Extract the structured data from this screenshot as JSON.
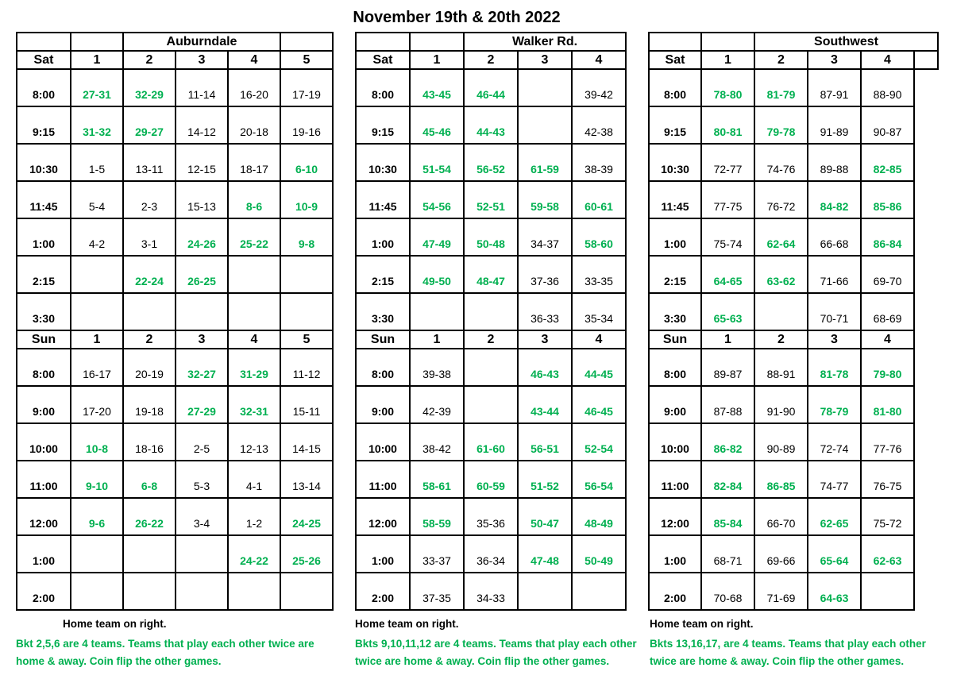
{
  "title": "November 19th & 20th 2022",
  "colors": {
    "green": "#00b050",
    "text": "#000000",
    "background": "#ffffff"
  },
  "tables": [
    {
      "name": "Auburndale",
      "day1": "Sat",
      "day2": "Sun",
      "columns": [
        "1",
        "2",
        "3",
        "4",
        "5"
      ],
      "venue_span": 3,
      "trailing_blank_cells": 1,
      "header_stub": false,
      "sat_rows": [
        {
          "time": "8:00",
          "cells": [
            {
              "v": "27-31",
              "green": true
            },
            {
              "v": "32-29",
              "green": true
            },
            {
              "v": "11-14"
            },
            {
              "v": "16-20"
            },
            {
              "v": "17-19"
            }
          ]
        },
        {
          "time": "9:15",
          "cells": [
            {
              "v": "31-32",
              "green": true
            },
            {
              "v": "29-27",
              "green": true
            },
            {
              "v": "14-12"
            },
            {
              "v": "20-18"
            },
            {
              "v": "19-16"
            }
          ]
        },
        {
          "time": "10:30",
          "cells": [
            {
              "v": "1-5"
            },
            {
              "v": "13-11"
            },
            {
              "v": "12-15"
            },
            {
              "v": "18-17"
            },
            {
              "v": "6-10",
              "green": true
            }
          ]
        },
        {
          "time": "11:45",
          "cells": [
            {
              "v": "5-4"
            },
            {
              "v": "2-3"
            },
            {
              "v": "15-13"
            },
            {
              "v": "8-6",
              "green": true
            },
            {
              "v": "10-9",
              "green": true
            }
          ]
        },
        {
          "time": "1:00",
          "cells": [
            {
              "v": "4-2"
            },
            {
              "v": "3-1"
            },
            {
              "v": "24-26",
              "green": true
            },
            {
              "v": "25-22",
              "green": true
            },
            {
              "v": "9-8",
              "green": true
            }
          ]
        },
        {
          "time": "2:15",
          "cells": [
            {
              "v": ""
            },
            {
              "v": "22-24",
              "green": true
            },
            {
              "v": "26-25",
              "green": true
            },
            {
              "v": ""
            },
            {
              "v": ""
            }
          ]
        },
        {
          "time": "3:30",
          "cells": [
            {
              "v": ""
            },
            {
              "v": ""
            },
            {
              "v": ""
            },
            {
              "v": ""
            },
            {
              "v": ""
            }
          ]
        }
      ],
      "sun_rows": [
        {
          "time": "8:00",
          "cells": [
            {
              "v": "16-17"
            },
            {
              "v": "20-19"
            },
            {
              "v": "32-27",
              "green": true
            },
            {
              "v": "31-29",
              "green": true
            },
            {
              "v": "11-12"
            }
          ]
        },
        {
          "time": "9:00",
          "cells": [
            {
              "v": "17-20"
            },
            {
              "v": "19-18"
            },
            {
              "v": "27-29",
              "green": true
            },
            {
              "v": "32-31",
              "green": true
            },
            {
              "v": "15-11"
            }
          ]
        },
        {
          "time": "10:00",
          "cells": [
            {
              "v": "10-8",
              "green": true
            },
            {
              "v": "18-16"
            },
            {
              "v": "2-5"
            },
            {
              "v": "12-13"
            },
            {
              "v": "14-15"
            }
          ]
        },
        {
          "time": "11:00",
          "cells": [
            {
              "v": "9-10",
              "green": true
            },
            {
              "v": "6-8",
              "green": true
            },
            {
              "v": "5-3"
            },
            {
              "v": "4-1"
            },
            {
              "v": "13-14"
            }
          ]
        },
        {
          "time": "12:00",
          "cells": [
            {
              "v": "9-6",
              "green": true
            },
            {
              "v": "26-22",
              "green": true
            },
            {
              "v": "3-4"
            },
            {
              "v": "1-2"
            },
            {
              "v": "24-25",
              "green": true
            }
          ]
        },
        {
          "time": "1:00",
          "cells": [
            {
              "v": ""
            },
            {
              "v": ""
            },
            {
              "v": ""
            },
            {
              "v": "24-22",
              "green": true
            },
            {
              "v": "25-26",
              "green": true
            }
          ]
        },
        {
          "time": "2:00",
          "cells": [
            {
              "v": ""
            },
            {
              "v": ""
            },
            {
              "v": ""
            },
            {
              "v": ""
            },
            {
              "v": ""
            }
          ]
        }
      ],
      "footer_black": "Home team on right.",
      "footer_green_line1": "Bkt 2,5,6 are 4 teams. Teams that play each other twice are",
      "footer_green_line2": "home & away. Coin flip the other games."
    },
    {
      "name": "Walker Rd.",
      "day1": "Sat",
      "day2": "Sun",
      "columns": [
        "1",
        "2",
        "3",
        "4"
      ],
      "venue_span": 3,
      "trailing_blank_cells": 0,
      "header_stub": false,
      "sat_rows": [
        {
          "time": "8:00",
          "cells": [
            {
              "v": "43-45",
              "green": true
            },
            {
              "v": "46-44",
              "green": true
            },
            {
              "v": ""
            },
            {
              "v": "39-42"
            }
          ]
        },
        {
          "time": "9:15",
          "cells": [
            {
              "v": "45-46",
              "green": true
            },
            {
              "v": "44-43",
              "green": true
            },
            {
              "v": ""
            },
            {
              "v": "42-38"
            }
          ]
        },
        {
          "time": "10:30",
          "cells": [
            {
              "v": "51-54",
              "green": true
            },
            {
              "v": "56-52",
              "green": true
            },
            {
              "v": "61-59",
              "green": true
            },
            {
              "v": "38-39"
            }
          ]
        },
        {
          "time": "11:45",
          "cells": [
            {
              "v": "54-56",
              "green": true
            },
            {
              "v": "52-51",
              "green": true
            },
            {
              "v": "59-58",
              "green": true
            },
            {
              "v": "60-61",
              "green": true
            }
          ]
        },
        {
          "time": "1:00",
          "cells": [
            {
              "v": "47-49",
              "green": true
            },
            {
              "v": "50-48",
              "green": true
            },
            {
              "v": "34-37"
            },
            {
              "v": "58-60",
              "green": true
            }
          ]
        },
        {
          "time": "2:15",
          "cells": [
            {
              "v": "49-50",
              "green": true
            },
            {
              "v": "48-47",
              "green": true
            },
            {
              "v": "37-36"
            },
            {
              "v": "33-35"
            }
          ]
        },
        {
          "time": "3:30",
          "cells": [
            {
              "v": ""
            },
            {
              "v": ""
            },
            {
              "v": "36-33"
            },
            {
              "v": "35-34"
            }
          ]
        }
      ],
      "sun_rows": [
        {
          "time": "8:00",
          "cells": [
            {
              "v": "39-38"
            },
            {
              "v": ""
            },
            {
              "v": "46-43",
              "green": true
            },
            {
              "v": "44-45",
              "green": true
            }
          ]
        },
        {
          "time": "9:00",
          "cells": [
            {
              "v": "42-39"
            },
            {
              "v": ""
            },
            {
              "v": "43-44",
              "green": true
            },
            {
              "v": "46-45",
              "green": true
            }
          ]
        },
        {
          "time": "10:00",
          "cells": [
            {
              "v": "38-42"
            },
            {
              "v": "61-60",
              "green": true
            },
            {
              "v": "56-51",
              "green": true
            },
            {
              "v": "52-54",
              "green": true
            }
          ]
        },
        {
          "time": "11:00",
          "cells": [
            {
              "v": "58-61",
              "green": true
            },
            {
              "v": "60-59",
              "green": true
            },
            {
              "v": "51-52",
              "green": true
            },
            {
              "v": "56-54",
              "green": true
            }
          ]
        },
        {
          "time": "12:00",
          "cells": [
            {
              "v": "58-59",
              "green": true
            },
            {
              "v": "35-36"
            },
            {
              "v": "50-47",
              "green": true
            },
            {
              "v": "48-49",
              "green": true
            }
          ]
        },
        {
          "time": "1:00",
          "cells": [
            {
              "v": "33-37"
            },
            {
              "v": "36-34"
            },
            {
              "v": "47-48",
              "green": true
            },
            {
              "v": "50-49",
              "green": true
            }
          ]
        },
        {
          "time": "2:00",
          "cells": [
            {
              "v": "37-35"
            },
            {
              "v": "34-33"
            },
            {
              "v": ""
            },
            {
              "v": ""
            }
          ]
        }
      ],
      "footer_black": "Home team on right.",
      "footer_green_line1": "Bkts 9,10,11,12 are 4 teams. Teams that play each other",
      "footer_green_line2": "twice are home & away. Coin flip the other games."
    },
    {
      "name": "Southwest",
      "day1": "Sat",
      "day2": "Sun",
      "columns": [
        "1",
        "2",
        "3",
        "4"
      ],
      "venue_span": 4,
      "trailing_blank_cells": 0,
      "header_stub": true,
      "sat_rows": [
        {
          "time": "8:00",
          "cells": [
            {
              "v": "78-80",
              "green": true
            },
            {
              "v": "81-79",
              "green": true
            },
            {
              "v": "87-91"
            },
            {
              "v": "88-90"
            }
          ]
        },
        {
          "time": "9:15",
          "cells": [
            {
              "v": "80-81",
              "green": true
            },
            {
              "v": "79-78",
              "green": true
            },
            {
              "v": "91-89"
            },
            {
              "v": "90-87"
            }
          ]
        },
        {
          "time": "10:30",
          "cells": [
            {
              "v": "72-77"
            },
            {
              "v": "74-76"
            },
            {
              "v": "89-88"
            },
            {
              "v": "82-85",
              "green": true
            }
          ]
        },
        {
          "time": "11:45",
          "cells": [
            {
              "v": "77-75"
            },
            {
              "v": "76-72"
            },
            {
              "v": "84-82",
              "green": true
            },
            {
              "v": "85-86",
              "green": true
            }
          ]
        },
        {
          "time": "1:00",
          "cells": [
            {
              "v": "75-74"
            },
            {
              "v": "62-64",
              "green": true
            },
            {
              "v": "66-68"
            },
            {
              "v": "86-84",
              "green": true
            }
          ]
        },
        {
          "time": "2:15",
          "cells": [
            {
              "v": "64-65",
              "green": true
            },
            {
              "v": "63-62",
              "green": true
            },
            {
              "v": "71-66"
            },
            {
              "v": "69-70"
            }
          ]
        },
        {
          "time": "3:30",
          "cells": [
            {
              "v": "65-63",
              "green": true
            },
            {
              "v": ""
            },
            {
              "v": "70-71"
            },
            {
              "v": "68-69"
            }
          ]
        }
      ],
      "sun_rows": [
        {
          "time": "8:00",
          "cells": [
            {
              "v": "89-87"
            },
            {
              "v": "88-91"
            },
            {
              "v": "81-78",
              "green": true
            },
            {
              "v": "79-80",
              "green": true
            }
          ]
        },
        {
          "time": "9:00",
          "cells": [
            {
              "v": "87-88"
            },
            {
              "v": "91-90"
            },
            {
              "v": "78-79",
              "green": true
            },
            {
              "v": "81-80",
              "green": true
            }
          ]
        },
        {
          "time": "10:00",
          "cells": [
            {
              "v": "86-82",
              "green": true
            },
            {
              "v": "90-89"
            },
            {
              "v": "72-74"
            },
            {
              "v": "77-76"
            }
          ]
        },
        {
          "time": "11:00",
          "cells": [
            {
              "v": "82-84",
              "green": true
            },
            {
              "v": "86-85",
              "green": true
            },
            {
              "v": "74-77"
            },
            {
              "v": "76-75"
            }
          ]
        },
        {
          "time": "12:00",
          "cells": [
            {
              "v": "85-84",
              "green": true
            },
            {
              "v": "66-70"
            },
            {
              "v": "62-65",
              "green": true
            },
            {
              "v": "75-72"
            }
          ]
        },
        {
          "time": "1:00",
          "cells": [
            {
              "v": "68-71"
            },
            {
              "v": "69-66"
            },
            {
              "v": "65-64",
              "green": true
            },
            {
              "v": "62-63",
              "green": true
            }
          ]
        },
        {
          "time": "2:00",
          "cells": [
            {
              "v": "70-68"
            },
            {
              "v": "71-69"
            },
            {
              "v": "64-63",
              "green": true
            },
            {
              "v": ""
            }
          ]
        }
      ],
      "footer_black": "Home team on right.",
      "footer_green_line1": "Bkts 13,16,17, are 4 teams. Teams that play each other",
      "footer_green_line2": "twice are home & away. Coin flip the other games."
    }
  ]
}
